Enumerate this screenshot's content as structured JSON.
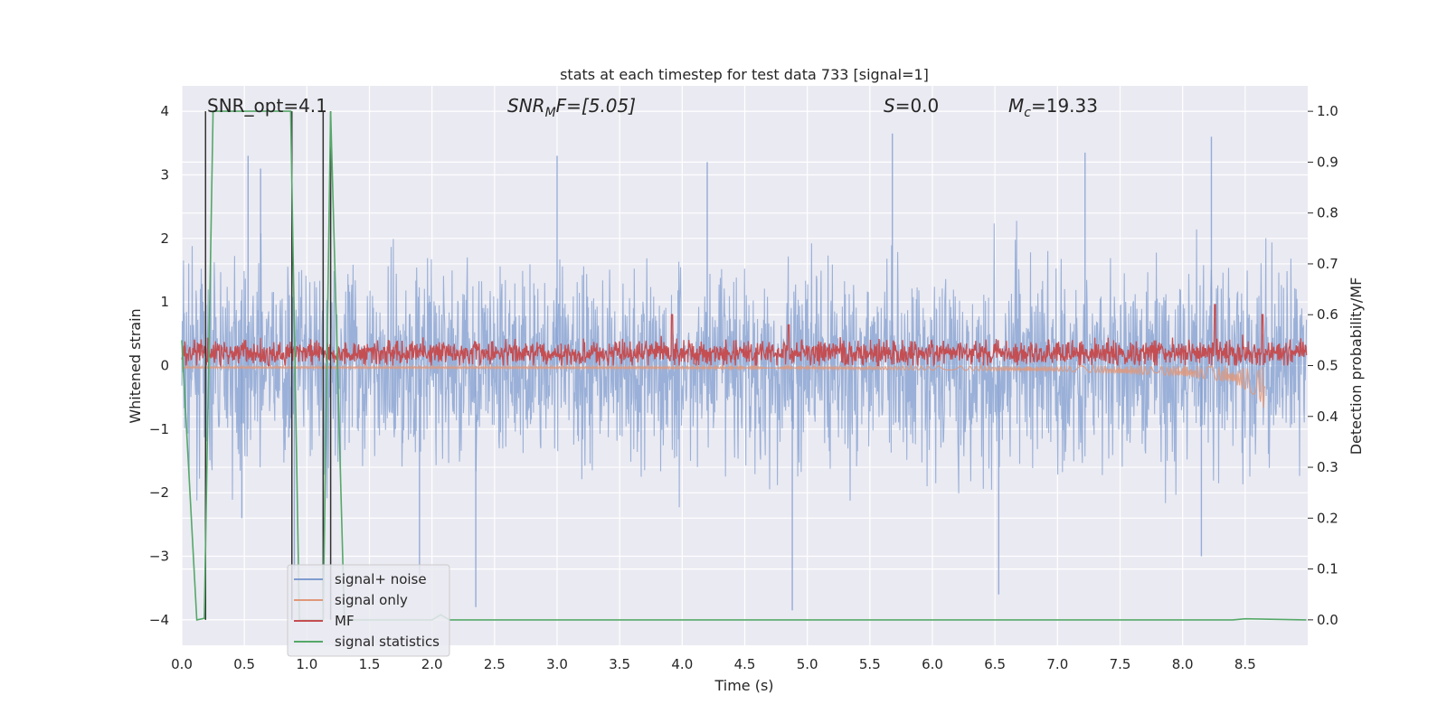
{
  "chart_data": {
    "type": "line",
    "title": "stats at each timestep for test data 733 [signal=1]",
    "xlabel": "Time (s)",
    "ylabel_left": "Whitened strain",
    "ylabel_right": "Detection probability/MF",
    "xlim": [
      0.0,
      9.0
    ],
    "ylim_left": [
      -4.4,
      4.4
    ],
    "ylim_right": [
      -0.05,
      1.05
    ],
    "x_ticks": [
      "0.0",
      "0.5",
      "1.0",
      "1.5",
      "2.0",
      "2.5",
      "3.0",
      "3.5",
      "4.0",
      "4.5",
      "5.0",
      "5.5",
      "6.0",
      "6.5",
      "7.0",
      "7.5",
      "8.0",
      "8.5"
    ],
    "y_ticks_left": [
      "−4",
      "−3",
      "−2",
      "−1",
      "0",
      "1",
      "2",
      "3",
      "4"
    ],
    "y_ticks_right": [
      "0.0",
      "0.1",
      "0.2",
      "0.3",
      "0.4",
      "0.5",
      "0.6",
      "0.7",
      "0.8",
      "0.9",
      "1.0"
    ],
    "grid": true,
    "legend_position": "lower-left",
    "annotations": {
      "snr_opt": "SNR_opt=4.1",
      "snr_mf_label": "SNR",
      "snr_mf_sub": "M",
      "snr_mf_rest": "F=[5.05]",
      "s_label": "S",
      "s_value": "=0.0",
      "mc_label": "M",
      "mc_sub": "c",
      "mc_value": "=19.33"
    },
    "series": [
      {
        "name": "signal+ noise",
        "axis": "left",
        "color": "#7f9ccf",
        "style": "noise",
        "envelope_x": [
          0.0,
          2.0,
          4.0,
          6.0,
          8.0,
          8.99
        ],
        "envelope_upper": [
          2.4,
          2.5,
          2.5,
          2.6,
          2.7,
          2.3
        ],
        "envelope_lower": [
          -2.4,
          -2.5,
          -2.5,
          -2.6,
          -2.7,
          -2.3
        ],
        "spikes": [
          [
            0.53,
            3.3
          ],
          [
            0.63,
            3.1
          ],
          [
            0.48,
            -2.4
          ],
          [
            2.35,
            -3.8
          ],
          [
            3.0,
            3.3
          ],
          [
            4.88,
            -3.85
          ],
          [
            5.68,
            3.65
          ],
          [
            6.53,
            -3.6
          ],
          [
            7.22,
            3.35
          ],
          [
            8.23,
            3.6
          ],
          [
            8.15,
            -3.0
          ],
          [
            0.9,
            -3.2
          ],
          [
            1.9,
            -3.3
          ],
          [
            4.2,
            3.2
          ]
        ]
      },
      {
        "name": "signal only",
        "axis": "left",
        "color": "#e0987a",
        "style": "chirp",
        "x": [
          0.0,
          5.0,
          7.0,
          8.0,
          8.4,
          8.6,
          8.66
        ],
        "amplitude": [
          0.05,
          0.06,
          0.1,
          0.18,
          0.3,
          0.55,
          0.8
        ]
      },
      {
        "name": "MF",
        "axis": "right",
        "color": "#c44e52",
        "style": "noisy",
        "baseline": 0.525,
        "spread": 0.03,
        "peaks": [
          [
            0.1,
            0.55
          ],
          [
            3.92,
            0.6
          ],
          [
            4.85,
            0.58
          ],
          [
            8.26,
            0.62
          ],
          [
            8.64,
            0.6
          ]
        ]
      },
      {
        "name": "signal statistics",
        "axis": "right",
        "color": "#55a868",
        "style": "line",
        "x": [
          0.0,
          0.12,
          0.18,
          0.25,
          0.87,
          0.94,
          1.13,
          1.19,
          1.3,
          2.0,
          2.07,
          2.14,
          8.4,
          8.5,
          8.99
        ],
        "y": [
          0.55,
          0.0,
          0.003,
          1.0,
          1.0,
          0.0,
          0.0,
          1.0,
          0.0,
          0.0,
          0.01,
          0.0,
          0.0,
          0.002,
          0.0
        ]
      }
    ],
    "vertical_markers": {
      "color": "#333333",
      "x": [
        0.19,
        0.88,
        1.13,
        1.19
      ],
      "y_range_right": [
        0.0,
        1.0
      ]
    }
  }
}
